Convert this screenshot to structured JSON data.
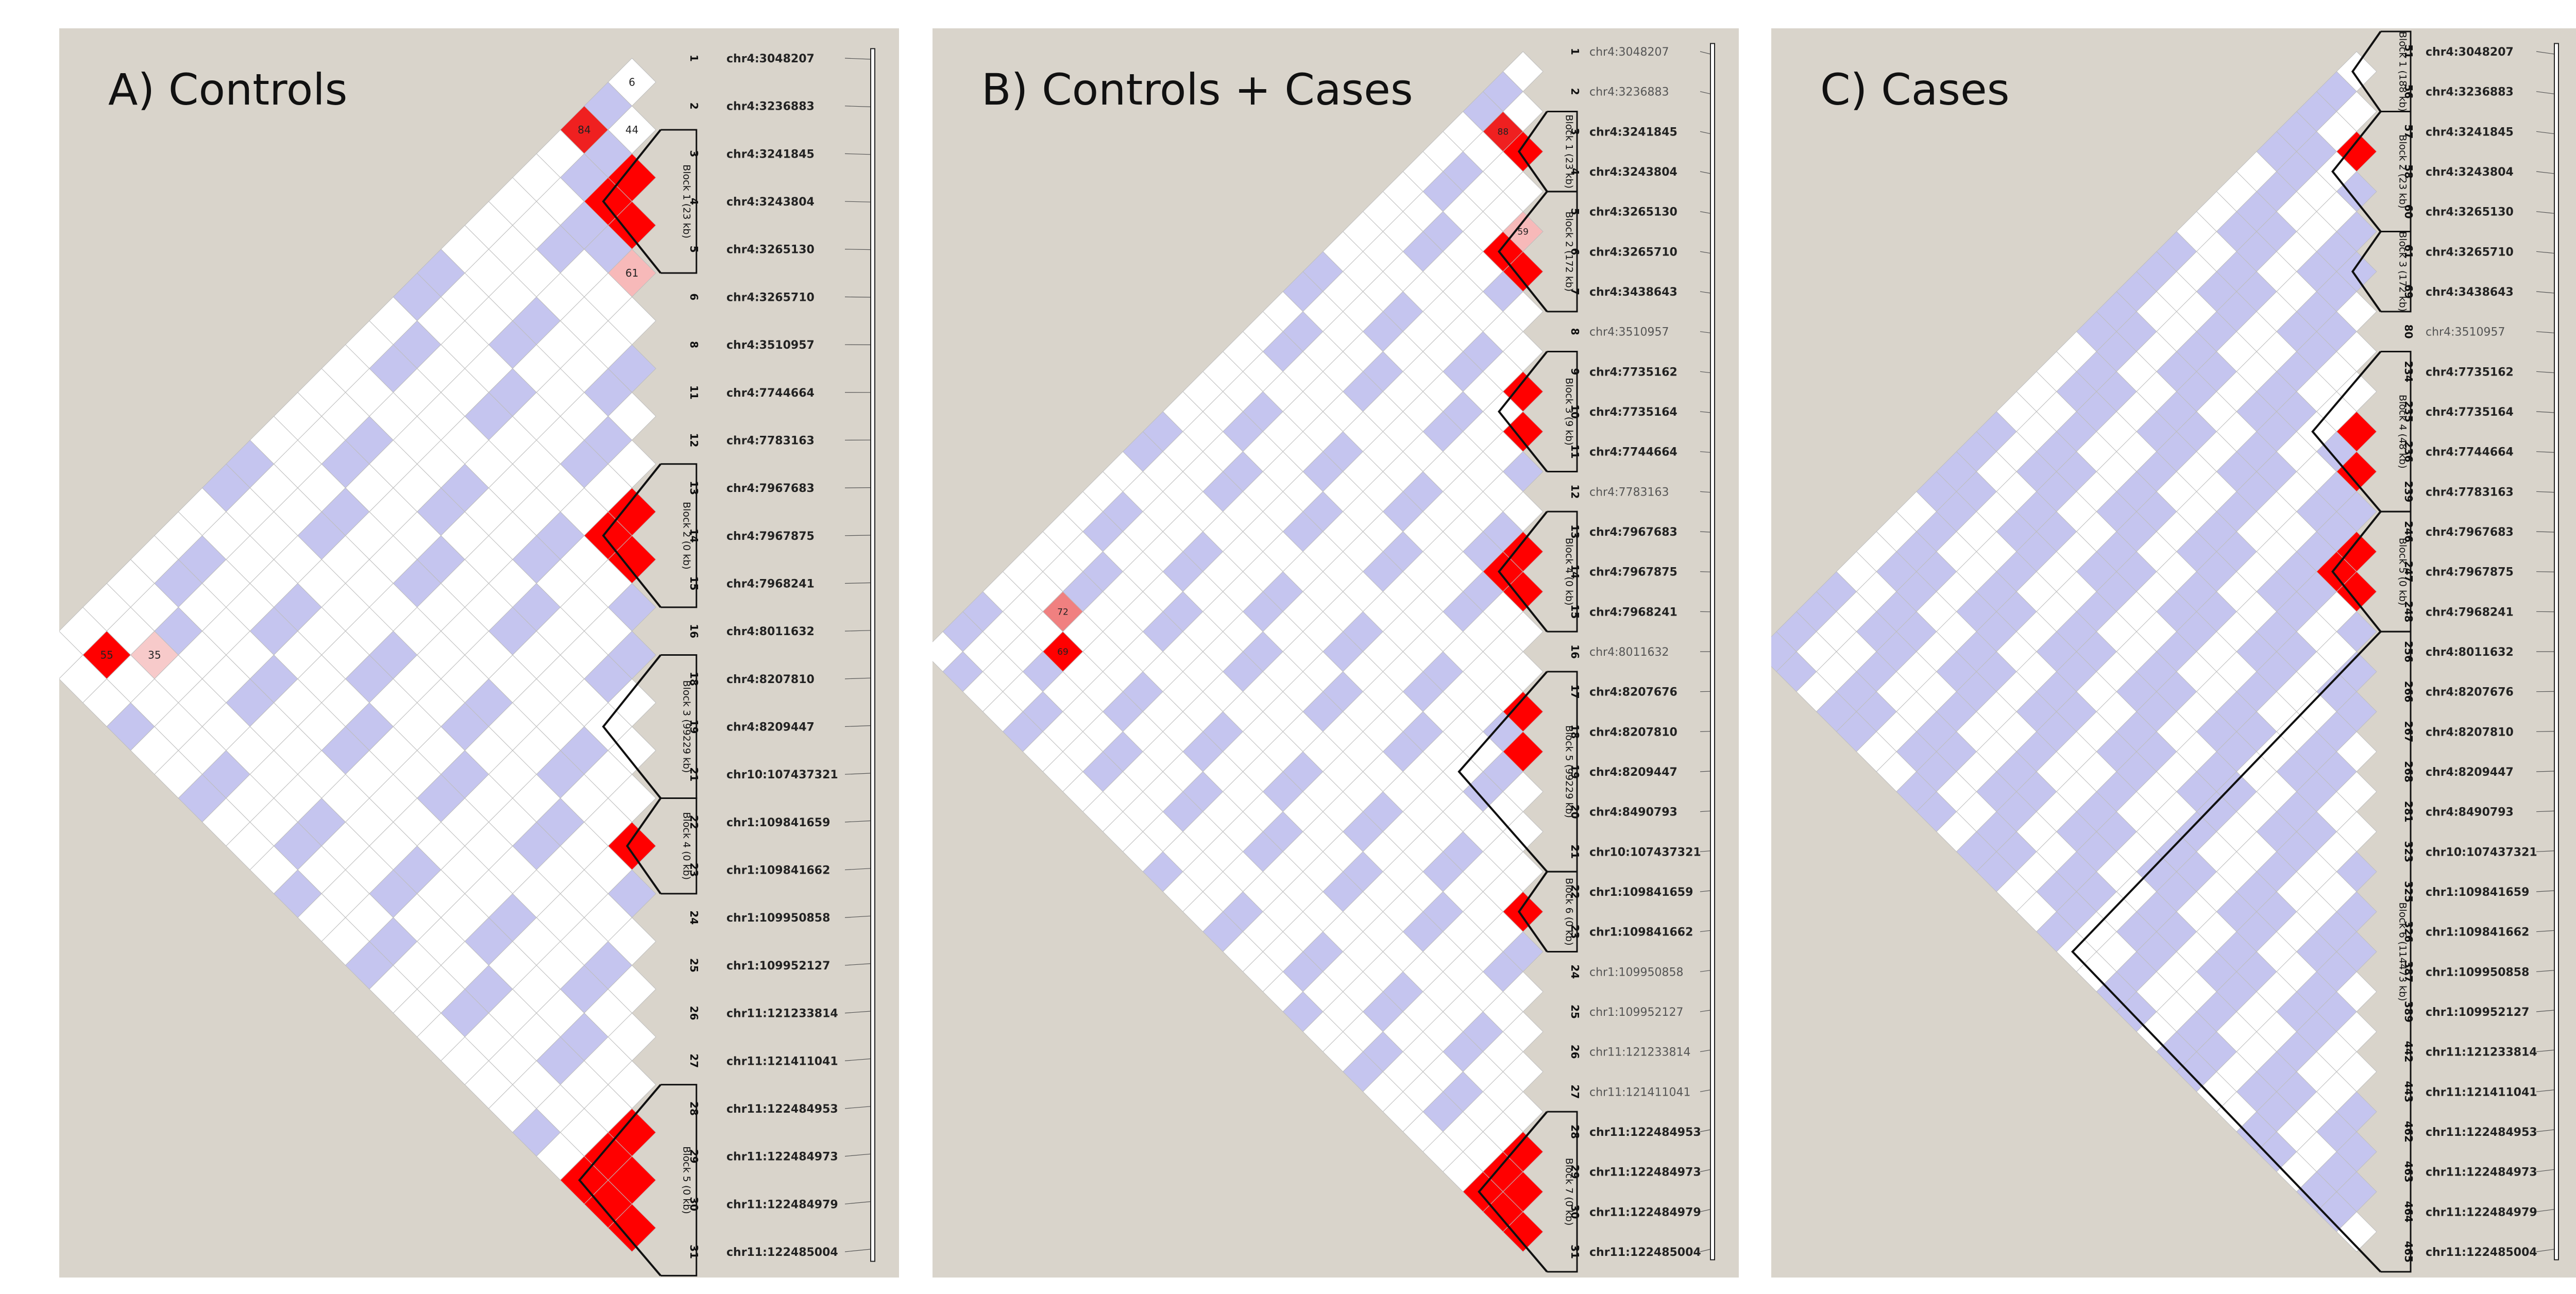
{
  "chart_data": [
    {
      "type": "heatmap",
      "title": "A) Controls",
      "snps": [
        {
          "idx": "1",
          "name": "chr4:3048207",
          "bold": true
        },
        {
          "idx": "2",
          "name": "chr4:3236883",
          "bold": true
        },
        {
          "idx": "3",
          "name": "chr4:3241845",
          "bold": true
        },
        {
          "idx": "4",
          "name": "chr4:3243804",
          "bold": true
        },
        {
          "idx": "5",
          "name": "chr4:3265130",
          "bold": true
        },
        {
          "idx": "6",
          "name": "chr4:3265710",
          "bold": true
        },
        {
          "idx": "8",
          "name": "chr4:3510957",
          "bold": true
        },
        {
          "idx": "11",
          "name": "chr4:7744664",
          "bold": true
        },
        {
          "idx": "12",
          "name": "chr4:7783163",
          "bold": true
        },
        {
          "idx": "13",
          "name": "chr4:7967683",
          "bold": true
        },
        {
          "idx": "14",
          "name": "chr4:7967875",
          "bold": true
        },
        {
          "idx": "15",
          "name": "chr4:7968241",
          "bold": true
        },
        {
          "idx": "16",
          "name": "chr4:8011632",
          "bold": true
        },
        {
          "idx": "18",
          "name": "chr4:8207810",
          "bold": true
        },
        {
          "idx": "19",
          "name": "chr4:8209447",
          "bold": true
        },
        {
          "idx": "21",
          "name": "chr10:107437321",
          "bold": true
        },
        {
          "idx": "22",
          "name": "chr1:109841659",
          "bold": true
        },
        {
          "idx": "23",
          "name": "chr1:109841662",
          "bold": true
        },
        {
          "idx": "24",
          "name": "chr1:109950858",
          "bold": true
        },
        {
          "idx": "25",
          "name": "chr1:109952127",
          "bold": true
        },
        {
          "idx": "26",
          "name": "chr11:121233814",
          "bold": true
        },
        {
          "idx": "27",
          "name": "chr11:121411041",
          "bold": true
        },
        {
          "idx": "28",
          "name": "chr11:122484953",
          "bold": true
        },
        {
          "idx": "29",
          "name": "chr11:122484973",
          "bold": true
        },
        {
          "idx": "30",
          "name": "chr11:122484979",
          "bold": true
        },
        {
          "idx": "31",
          "name": "chr11:122485004",
          "bold": true
        }
      ],
      "blocks": [
        {
          "label": "Block 1 (23 kb)",
          "start": 2,
          "end": 4
        },
        {
          "label": "Block 2 (0 kb)",
          "start": 9,
          "end": 11
        },
        {
          "label": "Block 3 (99229 kb)",
          "start": 13,
          "end": 15
        },
        {
          "label": "Block 4 (0 kb)",
          "start": 16,
          "end": 17
        },
        {
          "label": "Block 5 (0 kb)",
          "start": 22,
          "end": 25
        }
      ],
      "cells": [
        {
          "r": 0,
          "c": 1,
          "v": "6",
          "fill": "#ffffff"
        },
        {
          "r": 1,
          "c": 2,
          "v": "44",
          "fill": "#ffffff"
        },
        {
          "r": 0,
          "c": 2,
          "v": "",
          "fill": "#c5c5ef"
        },
        {
          "r": 0,
          "c": 3,
          "v": "84",
          "fill": "#ef2020"
        },
        {
          "r": 1,
          "c": 3,
          "v": "",
          "fill": "#c5c5ef"
        },
        {
          "r": 2,
          "c": 3,
          "v": "",
          "fill": "#ff0000"
        },
        {
          "r": 2,
          "c": 4,
          "v": "",
          "fill": "#ff0000"
        },
        {
          "r": 3,
          "c": 4,
          "v": "",
          "fill": "#ff0000"
        },
        {
          "r": 4,
          "c": 5,
          "v": "61",
          "fill": "#f7b9b9"
        },
        {
          "r": 3,
          "c": 5,
          "v": "",
          "fill": "#c5c5ef"
        },
        {
          "r": 9,
          "c": 10,
          "v": "",
          "fill": "#ff0000"
        },
        {
          "r": 10,
          "c": 11,
          "v": "",
          "fill": "#ff0000"
        },
        {
          "r": 9,
          "c": 11,
          "v": "",
          "fill": "#ff0000"
        },
        {
          "r": 16,
          "c": 17,
          "v": "",
          "fill": "#ff0000"
        },
        {
          "r": 22,
          "c": 23,
          "v": "",
          "fill": "#ff0000"
        },
        {
          "r": 23,
          "c": 24,
          "v": "",
          "fill": "#ff0000"
        },
        {
          "r": 24,
          "c": 25,
          "v": "",
          "fill": "#ff0000"
        },
        {
          "r": 22,
          "c": 24,
          "v": "",
          "fill": "#ff0000"
        },
        {
          "r": 23,
          "c": 25,
          "v": "",
          "fill": "#ff0000"
        },
        {
          "r": 22,
          "c": 25,
          "v": "",
          "fill": "#ff0000"
        },
        {
          "r": 1,
          "c": 24,
          "v": "55",
          "fill": "#ff0000"
        },
        {
          "r": 2,
          "c": 23,
          "v": "35",
          "fill": "#f7caca"
        }
      ]
    },
    {
      "type": "heatmap",
      "title": "B) Controls + Cases",
      "snps": [
        {
          "idx": "1",
          "name": "chr4:3048207",
          "bold": false
        },
        {
          "idx": "2",
          "name": "chr4:3236883",
          "bold": false
        },
        {
          "idx": "3",
          "name": "chr4:3241845",
          "bold": true
        },
        {
          "idx": "4",
          "name": "chr4:3243804",
          "bold": true
        },
        {
          "idx": "5",
          "name": "chr4:3265130",
          "bold": true
        },
        {
          "idx": "6",
          "name": "chr4:3265710",
          "bold": true
        },
        {
          "idx": "7",
          "name": "chr4:3438643",
          "bold": true
        },
        {
          "idx": "8",
          "name": "chr4:3510957",
          "bold": false
        },
        {
          "idx": "9",
          "name": "chr4:7735162",
          "bold": true
        },
        {
          "idx": "10",
          "name": "chr4:7735164",
          "bold": true
        },
        {
          "idx": "11",
          "name": "chr4:7744664",
          "bold": true
        },
        {
          "idx": "12",
          "name": "chr4:7783163",
          "bold": false
        },
        {
          "idx": "13",
          "name": "chr4:7967683",
          "bold": true
        },
        {
          "idx": "14",
          "name": "chr4:7967875",
          "bold": true
        },
        {
          "idx": "15",
          "name": "chr4:7968241",
          "bold": true
        },
        {
          "idx": "16",
          "name": "chr4:8011632",
          "bold": false
        },
        {
          "idx": "17",
          "name": "chr4:8207676",
          "bold": true
        },
        {
          "idx": "18",
          "name": "chr4:8207810",
          "bold": true
        },
        {
          "idx": "19",
          "name": "chr4:8209447",
          "bold": true
        },
        {
          "idx": "20",
          "name": "chr4:8490793",
          "bold": true
        },
        {
          "idx": "21",
          "name": "chr10:107437321",
          "bold": true
        },
        {
          "idx": "22",
          "name": "chr1:109841659",
          "bold": true
        },
        {
          "idx": "23",
          "name": "chr1:109841662",
          "bold": true
        },
        {
          "idx": "24",
          "name": "chr1:109950858",
          "bold": false
        },
        {
          "idx": "25",
          "name": "chr1:109952127",
          "bold": false
        },
        {
          "idx": "26",
          "name": "chr11:121233814",
          "bold": false
        },
        {
          "idx": "27",
          "name": "chr11:121411041",
          "bold": false
        },
        {
          "idx": "28",
          "name": "chr11:122484953",
          "bold": true
        },
        {
          "idx": "29",
          "name": "chr11:122484973",
          "bold": true
        },
        {
          "idx": "30",
          "name": "chr11:122484979",
          "bold": true
        },
        {
          "idx": "31",
          "name": "chr11:122485004",
          "bold": true
        }
      ],
      "blocks": [
        {
          "label": "Block 1 (23 kb)",
          "start": 2,
          "end": 3
        },
        {
          "label": "Block 2 (172 kb)",
          "start": 4,
          "end": 6
        },
        {
          "label": "Block 3 (9 kb)",
          "start": 8,
          "end": 10
        },
        {
          "label": "Block 4 (0 kb)",
          "start": 12,
          "end": 14
        },
        {
          "label": "Block 5 (99229 kb)",
          "start": 16,
          "end": 20
        },
        {
          "label": "Block 6 (0 kb)",
          "start": 21,
          "end": 22
        },
        {
          "label": "Block 7 (0 kb)",
          "start": 27,
          "end": 30
        }
      ],
      "cells": [
        {
          "r": 1,
          "c": 3,
          "v": "88",
          "fill": "#ef2020"
        },
        {
          "r": 2,
          "c": 3,
          "v": "",
          "fill": "#ff0000"
        },
        {
          "r": 5,
          "c": 6,
          "v": "",
          "fill": "#ff0000"
        },
        {
          "r": 4,
          "c": 6,
          "v": "",
          "fill": "#ff0000"
        },
        {
          "r": 4,
          "c": 5,
          "v": "59",
          "fill": "#f7b9b9"
        },
        {
          "r": 8,
          "c": 9,
          "v": "",
          "fill": "#ff0000"
        },
        {
          "r": 9,
          "c": 10,
          "v": "",
          "fill": "#ff0000"
        },
        {
          "r": 12,
          "c": 13,
          "v": "",
          "fill": "#ff0000"
        },
        {
          "r": 13,
          "c": 14,
          "v": "",
          "fill": "#ff0000"
        },
        {
          "r": 12,
          "c": 14,
          "v": "",
          "fill": "#ff0000"
        },
        {
          "r": 16,
          "c": 17,
          "v": "",
          "fill": "#ff0000"
        },
        {
          "r": 17,
          "c": 18,
          "v": "",
          "fill": "#ff0000"
        },
        {
          "r": 21,
          "c": 22,
          "v": "",
          "fill": "#ff0000"
        },
        {
          "r": 27,
          "c": 28,
          "v": "",
          "fill": "#ff0000"
        },
        {
          "r": 28,
          "c": 29,
          "v": "",
          "fill": "#ff0000"
        },
        {
          "r": 29,
          "c": 30,
          "v": "",
          "fill": "#ff0000"
        },
        {
          "r": 27,
          "c": 29,
          "v": "",
          "fill": "#ff0000"
        },
        {
          "r": 28,
          "c": 30,
          "v": "",
          "fill": "#ff0000"
        },
        {
          "r": 27,
          "c": 30,
          "v": "",
          "fill": "#ff0000"
        },
        {
          "r": 3,
          "c": 27,
          "v": "69",
          "fill": "#ff0000"
        },
        {
          "r": 2,
          "c": 26,
          "v": "72",
          "fill": "#f08080"
        }
      ]
    },
    {
      "type": "heatmap",
      "title": "C) Cases",
      "snps": [
        {
          "idx": "51",
          "name": "chr4:3048207",
          "bold": true
        },
        {
          "idx": "56",
          "name": "chr4:3236883",
          "bold": true
        },
        {
          "idx": "57",
          "name": "chr4:3241845",
          "bold": true
        },
        {
          "idx": "58",
          "name": "chr4:3243804",
          "bold": true
        },
        {
          "idx": "60",
          "name": "chr4:3265130",
          "bold": true
        },
        {
          "idx": "61",
          "name": "chr4:3265710",
          "bold": true
        },
        {
          "idx": "69",
          "name": "chr4:3438643",
          "bold": true
        },
        {
          "idx": "80",
          "name": "chr4:3510957",
          "bold": false
        },
        {
          "idx": "234",
          "name": "chr4:7735162",
          "bold": true
        },
        {
          "idx": "235",
          "name": "chr4:7735164",
          "bold": true
        },
        {
          "idx": "236",
          "name": "chr4:7744664",
          "bold": true
        },
        {
          "idx": "239",
          "name": "chr4:7783163",
          "bold": true
        },
        {
          "idx": "246",
          "name": "chr4:7967683",
          "bold": true
        },
        {
          "idx": "247",
          "name": "chr4:7967875",
          "bold": true
        },
        {
          "idx": "248",
          "name": "chr4:7968241",
          "bold": true
        },
        {
          "idx": "256",
          "name": "chr4:8011632",
          "bold": true
        },
        {
          "idx": "266",
          "name": "chr4:8207676",
          "bold": true
        },
        {
          "idx": "267",
          "name": "chr4:8207810",
          "bold": true
        },
        {
          "idx": "268",
          "name": "chr4:8209447",
          "bold": true
        },
        {
          "idx": "281",
          "name": "chr4:8490793",
          "bold": true
        },
        {
          "idx": "323",
          "name": "chr10:107437321",
          "bold": true
        },
        {
          "idx": "325",
          "name": "chr1:109841659",
          "bold": true
        },
        {
          "idx": "326",
          "name": "chr1:109841662",
          "bold": true
        },
        {
          "idx": "387",
          "name": "chr1:109950858",
          "bold": true
        },
        {
          "idx": "389",
          "name": "chr1:109952127",
          "bold": true
        },
        {
          "idx": "442",
          "name": "chr11:121233814",
          "bold": true
        },
        {
          "idx": "443",
          "name": "chr11:121411041",
          "bold": true
        },
        {
          "idx": "462",
          "name": "chr11:122484953",
          "bold": true
        },
        {
          "idx": "463",
          "name": "chr11:122484973",
          "bold": true
        },
        {
          "idx": "464",
          "name": "chr11:122484979",
          "bold": true
        },
        {
          "idx": "465",
          "name": "chr11:122485004",
          "bold": true
        }
      ],
      "blocks": [
        {
          "label": "Block 1 (188 kb)",
          "start": 0,
          "end": 1
        },
        {
          "label": "Block 2 (23 kb)",
          "start": 2,
          "end": 4
        },
        {
          "label": "Block 3 (172 kb)",
          "start": 5,
          "end": 6
        },
        {
          "label": "Block 4 (48 kb)",
          "start": 8,
          "end": 11
        },
        {
          "label": "Block 5 (0 kb)",
          "start": 12,
          "end": 14
        },
        {
          "label": "Block 6 (114473 kb)",
          "start": 15,
          "end": 30
        }
      ],
      "cells": [
        {
          "r": 2,
          "c": 3,
          "v": "",
          "fill": "#ff0000"
        },
        {
          "r": 9,
          "c": 10,
          "v": "",
          "fill": "#ff0000"
        },
        {
          "r": 10,
          "c": 11,
          "v": "",
          "fill": "#ff0000"
        },
        {
          "r": 12,
          "c": 13,
          "v": "",
          "fill": "#ff0000"
        },
        {
          "r": 13,
          "c": 14,
          "v": "",
          "fill": "#ff0000"
        },
        {
          "r": 12,
          "c": 14,
          "v": "",
          "fill": "#ff0000"
        }
      ],
      "highlights": [
        {
          "from": 2,
          "to": 6
        },
        {
          "from": 23,
          "to": 24
        }
      ]
    }
  ]
}
